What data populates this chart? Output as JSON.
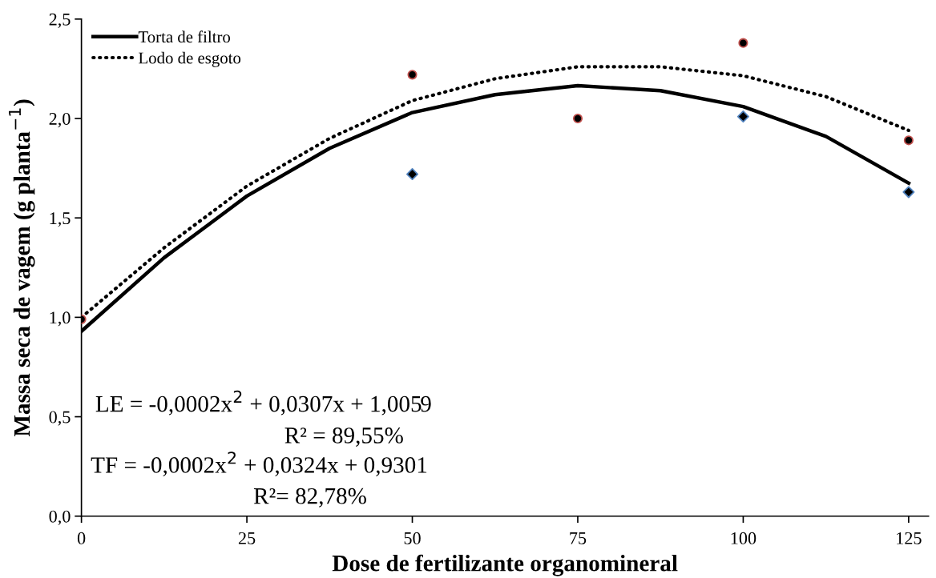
{
  "chart_data": {
    "type": "scatter",
    "xlabel": "Dose de fertilizante organomineral",
    "ylabel": "Massa seca de vagem (g planta$^{−1}$)",
    "xlim": [
      0,
      128
    ],
    "xticks": [
      0,
      25,
      50,
      75,
      100,
      125
    ],
    "ylim": [
      0,
      2.5
    ],
    "yticks": [
      {
        "value": 0,
        "label": "0,0"
      },
      {
        "value": 0.5,
        "label": "0,5"
      },
      {
        "value": 1,
        "label": "1,0"
      },
      {
        "value": 1.5,
        "label": "1,5"
      },
      {
        "value": 2,
        "label": "2,0"
      },
      {
        "value": 2.5,
        "label": "2,5"
      }
    ],
    "x": [
      0,
      50,
      75,
      100,
      125
    ],
    "series": [
      {
        "type": "line",
        "name": "Torta de filtro",
        "color": "#000000",
        "line_style": "solid",
        "x": [
          0,
          12.5,
          25,
          37.5,
          50,
          62.5,
          75,
          87.5,
          100,
          112.5,
          125
        ],
        "values": [
          0.93,
          1.3,
          1.61,
          1.85,
          2.03,
          2.12,
          2.165,
          2.14,
          2.06,
          1.91,
          1.675
        ]
      },
      {
        "type": "line",
        "name": "Lodo de esgoto",
        "color": "#000000",
        "line_style": "dotted",
        "x": [
          0,
          12.5,
          25,
          37.5,
          50,
          62.5,
          75,
          87.5,
          100,
          112.5,
          125
        ],
        "values": [
          1.0,
          1.35,
          1.66,
          1.9,
          2.09,
          2.2,
          2.26,
          2.26,
          2.215,
          2.11,
          1.94
        ]
      },
      {
        "marker": "diamond",
        "color": "#4f81bd",
        "values": [
          null,
          1.72,
          null,
          2.01,
          1.63
        ]
      },
      {
        "marker": "circle",
        "color": "#c0504d",
        "values": [
          0.99,
          2.22,
          2.0,
          2.38,
          1.89
        ]
      }
    ],
    "legend": "top left",
    "grid": false,
    "annotations": [
      "LE = -0,0002x$^{2}$ + 0,0307x + 1,0059",
      "R² = 89,55%",
      "TF = -0,0002x$^{2}$ + 0,0324x + 0,9301",
      "R²= 82,78%"
    ]
  }
}
